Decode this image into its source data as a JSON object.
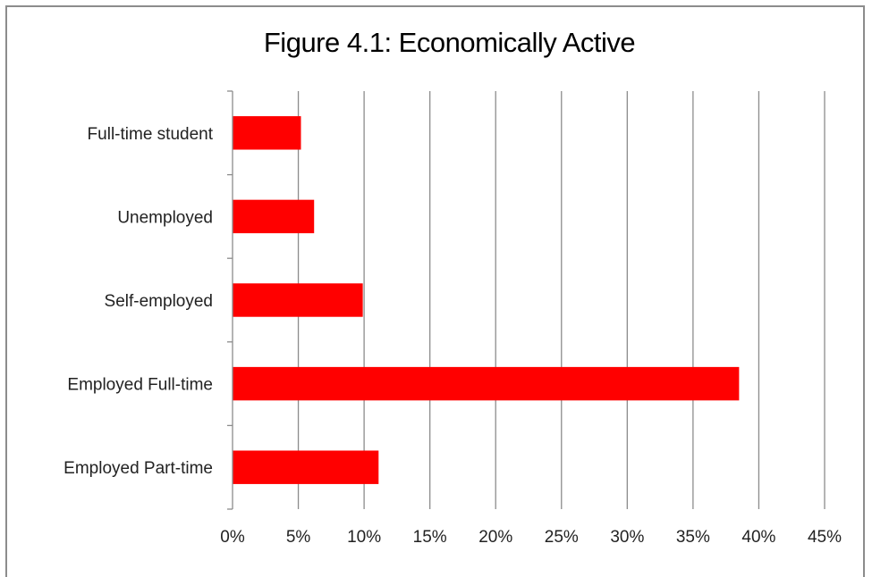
{
  "chart_data": {
    "type": "bar",
    "orientation": "horizontal",
    "title": "Figure 4.1: Economically Active",
    "categories": [
      "Full-time student",
      "Unemployed",
      "Self-employed",
      "Employed Full-time",
      "Employed Part-time"
    ],
    "series": [
      {
        "values": [
          5.2,
          6.2,
          9.9,
          38.5,
          11.1
        ]
      }
    ],
    "xlim": [
      0,
      45
    ],
    "x_ticks": [
      "0%",
      "5%",
      "10%",
      "15%",
      "20%",
      "25%",
      "30%",
      "35%",
      "40%",
      "45%"
    ],
    "x_tick_values": [
      0,
      5,
      10,
      15,
      20,
      25,
      30,
      35,
      40,
      45
    ],
    "bar_color": "#ff0000",
    "gridlines": true,
    "legend": "none"
  }
}
